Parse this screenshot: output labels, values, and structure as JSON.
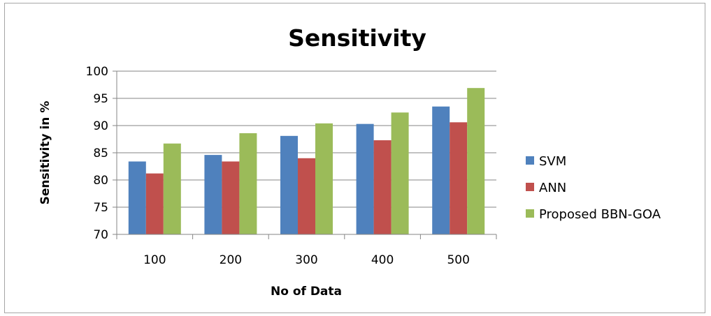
{
  "chart_data": {
    "type": "bar",
    "title": "Sensitivity",
    "xlabel": "No of Data",
    "ylabel": "Sensitivity in %",
    "categories": [
      "100",
      "200",
      "300",
      "400",
      "500"
    ],
    "series": [
      {
        "name": "SVM",
        "color": "#4f81bd",
        "values": [
          83.4,
          84.6,
          88.1,
          90.3,
          93.5
        ]
      },
      {
        "name": "ANN",
        "color": "#c0504d",
        "values": [
          81.2,
          83.4,
          84.0,
          87.3,
          90.6
        ]
      },
      {
        "name": "Proposed BBN-GOA",
        "color": "#9bbb59",
        "values": [
          86.7,
          88.6,
          90.4,
          92.4,
          96.9
        ]
      }
    ],
    "ylim": [
      70,
      100
    ],
    "yticks": [
      "70",
      "75",
      "80",
      "85",
      "90",
      "95",
      "100"
    ],
    "grid": true,
    "legend": "right"
  }
}
